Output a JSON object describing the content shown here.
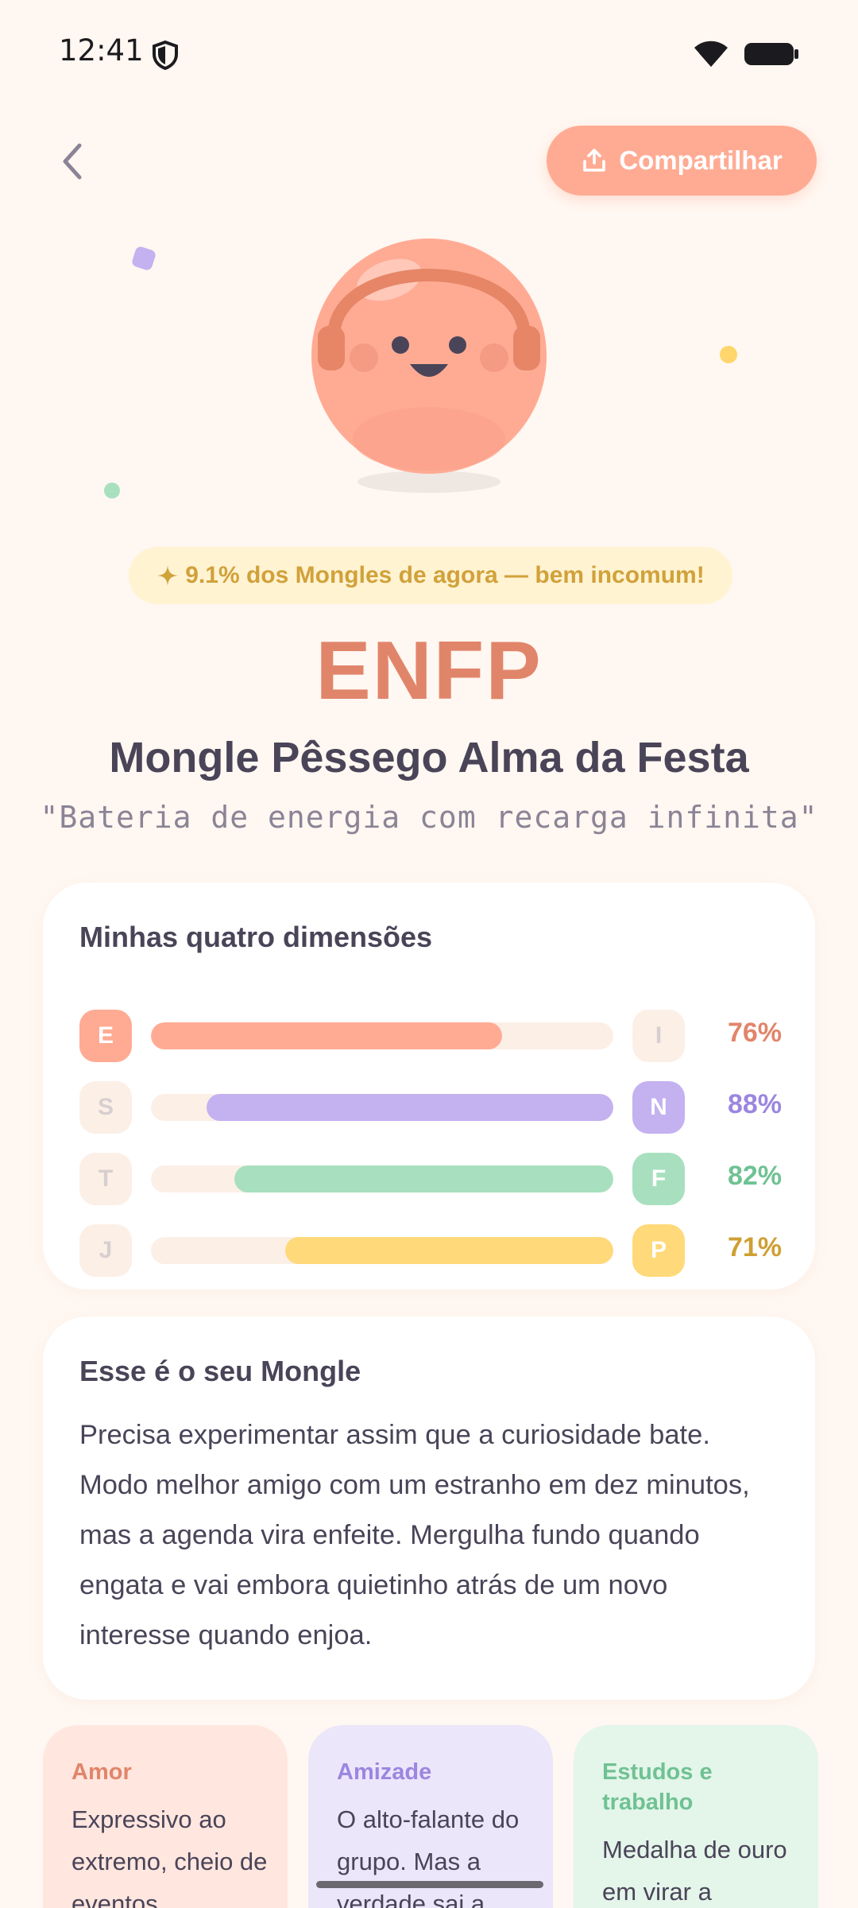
{
  "status_bar": {
    "time": "12:41"
  },
  "header": {
    "share_label": "Compartilhar"
  },
  "result": {
    "rarity": "9.1% dos Mongles de agora — bem incomum!",
    "rarity_icon": "sparkle-icon",
    "type_code": "ENFP",
    "type_name": "Mongle Pêssego Alma da Festa",
    "quote": "\"Bateria de energia com recarga infinita\""
  },
  "dimensions": {
    "title": "Minhas quatro dimensões",
    "rows": [
      {
        "left": "E",
        "right": "I",
        "winner": "E",
        "percent": "76%",
        "value": 0.76,
        "color": "#ffab94",
        "text_color": "#e1856a"
      },
      {
        "left": "S",
        "right": "N",
        "winner": "N",
        "percent": "88%",
        "value": 0.88,
        "color": "#c3b1f0",
        "text_color": "#9b86e0"
      },
      {
        "left": "T",
        "right": "F",
        "winner": "F",
        "percent": "82%",
        "value": 0.82,
        "color": "#a8e0bf",
        "text_color": "#6fc293"
      },
      {
        "left": "J",
        "right": "P",
        "winner": "P",
        "percent": "71%",
        "value": 0.71,
        "color": "#ffd97a",
        "text_color": "#cf9f33"
      }
    ]
  },
  "description": {
    "title": "Esse é o seu Mongle",
    "text": "Precisa experimentar assim que a curiosidade bate. Modo melhor amigo com um estranho em dez minutos, mas a agenda vira enfeite. Mergulha fundo quando engata e vai embora quietinho atrás de um novo interesse quando enjoa."
  },
  "traits": {
    "love": {
      "title": "Amor",
      "text": "Expressivo ao extremo, cheio de eventos",
      "color": "#e1856a"
    },
    "friendship": {
      "title": "Amizade",
      "text": "O alto-falante do grupo. Mas a verdade sai a",
      "color": "#9b86e0"
    },
    "work": {
      "title": "Estudos e trabalho",
      "text": "Medalha de ouro em virar a",
      "color": "#6fc293"
    }
  }
}
